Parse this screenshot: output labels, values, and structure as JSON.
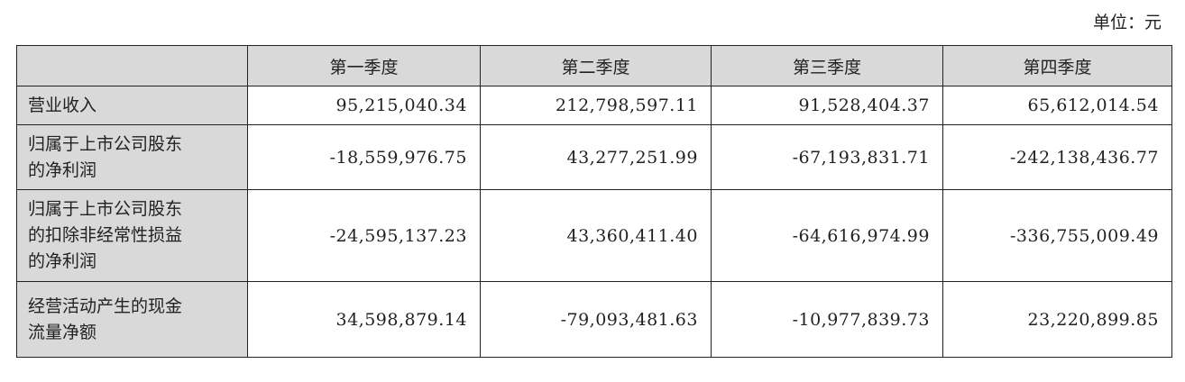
{
  "unit_label": "单位：元",
  "table": {
    "headers": [
      "",
      "第一季度",
      "第二季度",
      "第三季度",
      "第四季度"
    ],
    "rows": [
      {
        "label": [
          "营业收入"
        ],
        "values": [
          "95,215,040.34",
          "212,798,597.11",
          "91,528,404.37",
          "65,612,014.54"
        ]
      },
      {
        "label": [
          "归属于上市公司股东",
          "的净利润"
        ],
        "values": [
          "-18,559,976.75",
          "43,277,251.99",
          "-67,193,831.71",
          "-242,138,436.77"
        ]
      },
      {
        "label": [
          "归属于上市公司股东",
          "的扣除非经常性损益",
          "的净利润"
        ],
        "values": [
          "-24,595,137.23",
          "43,360,411.40",
          "-64,616,974.99",
          "-336,755,009.49"
        ]
      },
      {
        "label": [
          "经营活动产生的现金",
          "流量净额"
        ],
        "values": [
          "34,598,879.14",
          "-79,093,481.63",
          "-10,977,839.73",
          "23,220,899.85"
        ]
      }
    ]
  }
}
